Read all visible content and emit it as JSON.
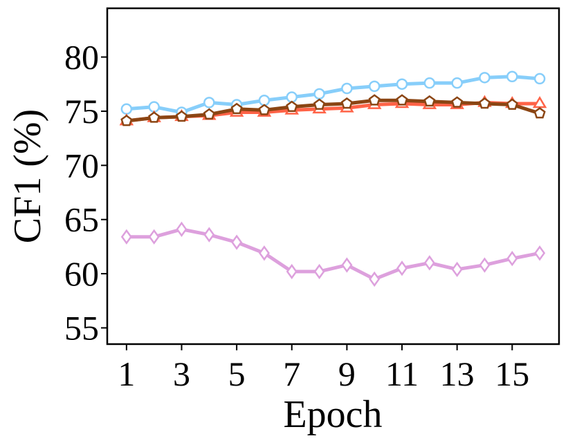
{
  "chart_data": {
    "type": "line",
    "title": "",
    "xlabel": "Epoch",
    "ylabel": "CF1 (%)",
    "x": [
      1,
      2,
      3,
      4,
      5,
      6,
      7,
      8,
      9,
      10,
      11,
      12,
      13,
      14,
      15,
      16
    ],
    "xticks": [
      "1",
      "3",
      "5",
      "7",
      "9",
      "11",
      "13",
      "15"
    ],
    "yticks": [
      "55",
      "60",
      "65",
      "70",
      "75",
      "80"
    ],
    "xlim": [
      0.3,
      16.7
    ],
    "ylim": [
      53.5,
      84.5
    ],
    "grid": false,
    "legend": "none",
    "series": [
      {
        "marker": "circle",
        "color": "#87CEFA",
        "values": [
          75.2,
          75.4,
          74.9,
          75.8,
          75.6,
          76.0,
          76.3,
          76.6,
          77.1,
          77.3,
          77.5,
          77.6,
          77.6,
          78.1,
          78.2,
          78.0
        ]
      },
      {
        "marker": "triangle",
        "color": "#FF6347",
        "values": [
          74.1,
          74.4,
          74.5,
          74.6,
          74.9,
          74.9,
          75.1,
          75.2,
          75.3,
          75.6,
          75.7,
          75.6,
          75.6,
          75.8,
          75.7,
          75.7
        ]
      },
      {
        "marker": "pentagon",
        "color": "#8B4513",
        "values": [
          74.1,
          74.4,
          74.5,
          74.7,
          75.2,
          75.1,
          75.4,
          75.6,
          75.7,
          76.0,
          76.0,
          75.9,
          75.8,
          75.7,
          75.6,
          74.8
        ]
      },
      {
        "marker": "diamond",
        "color": "#DDA0DD",
        "values": [
          63.4,
          63.4,
          64.1,
          63.6,
          62.9,
          61.9,
          60.2,
          60.2,
          60.8,
          59.5,
          60.5,
          61.0,
          60.4,
          60.8,
          61.4,
          61.9
        ]
      }
    ]
  }
}
